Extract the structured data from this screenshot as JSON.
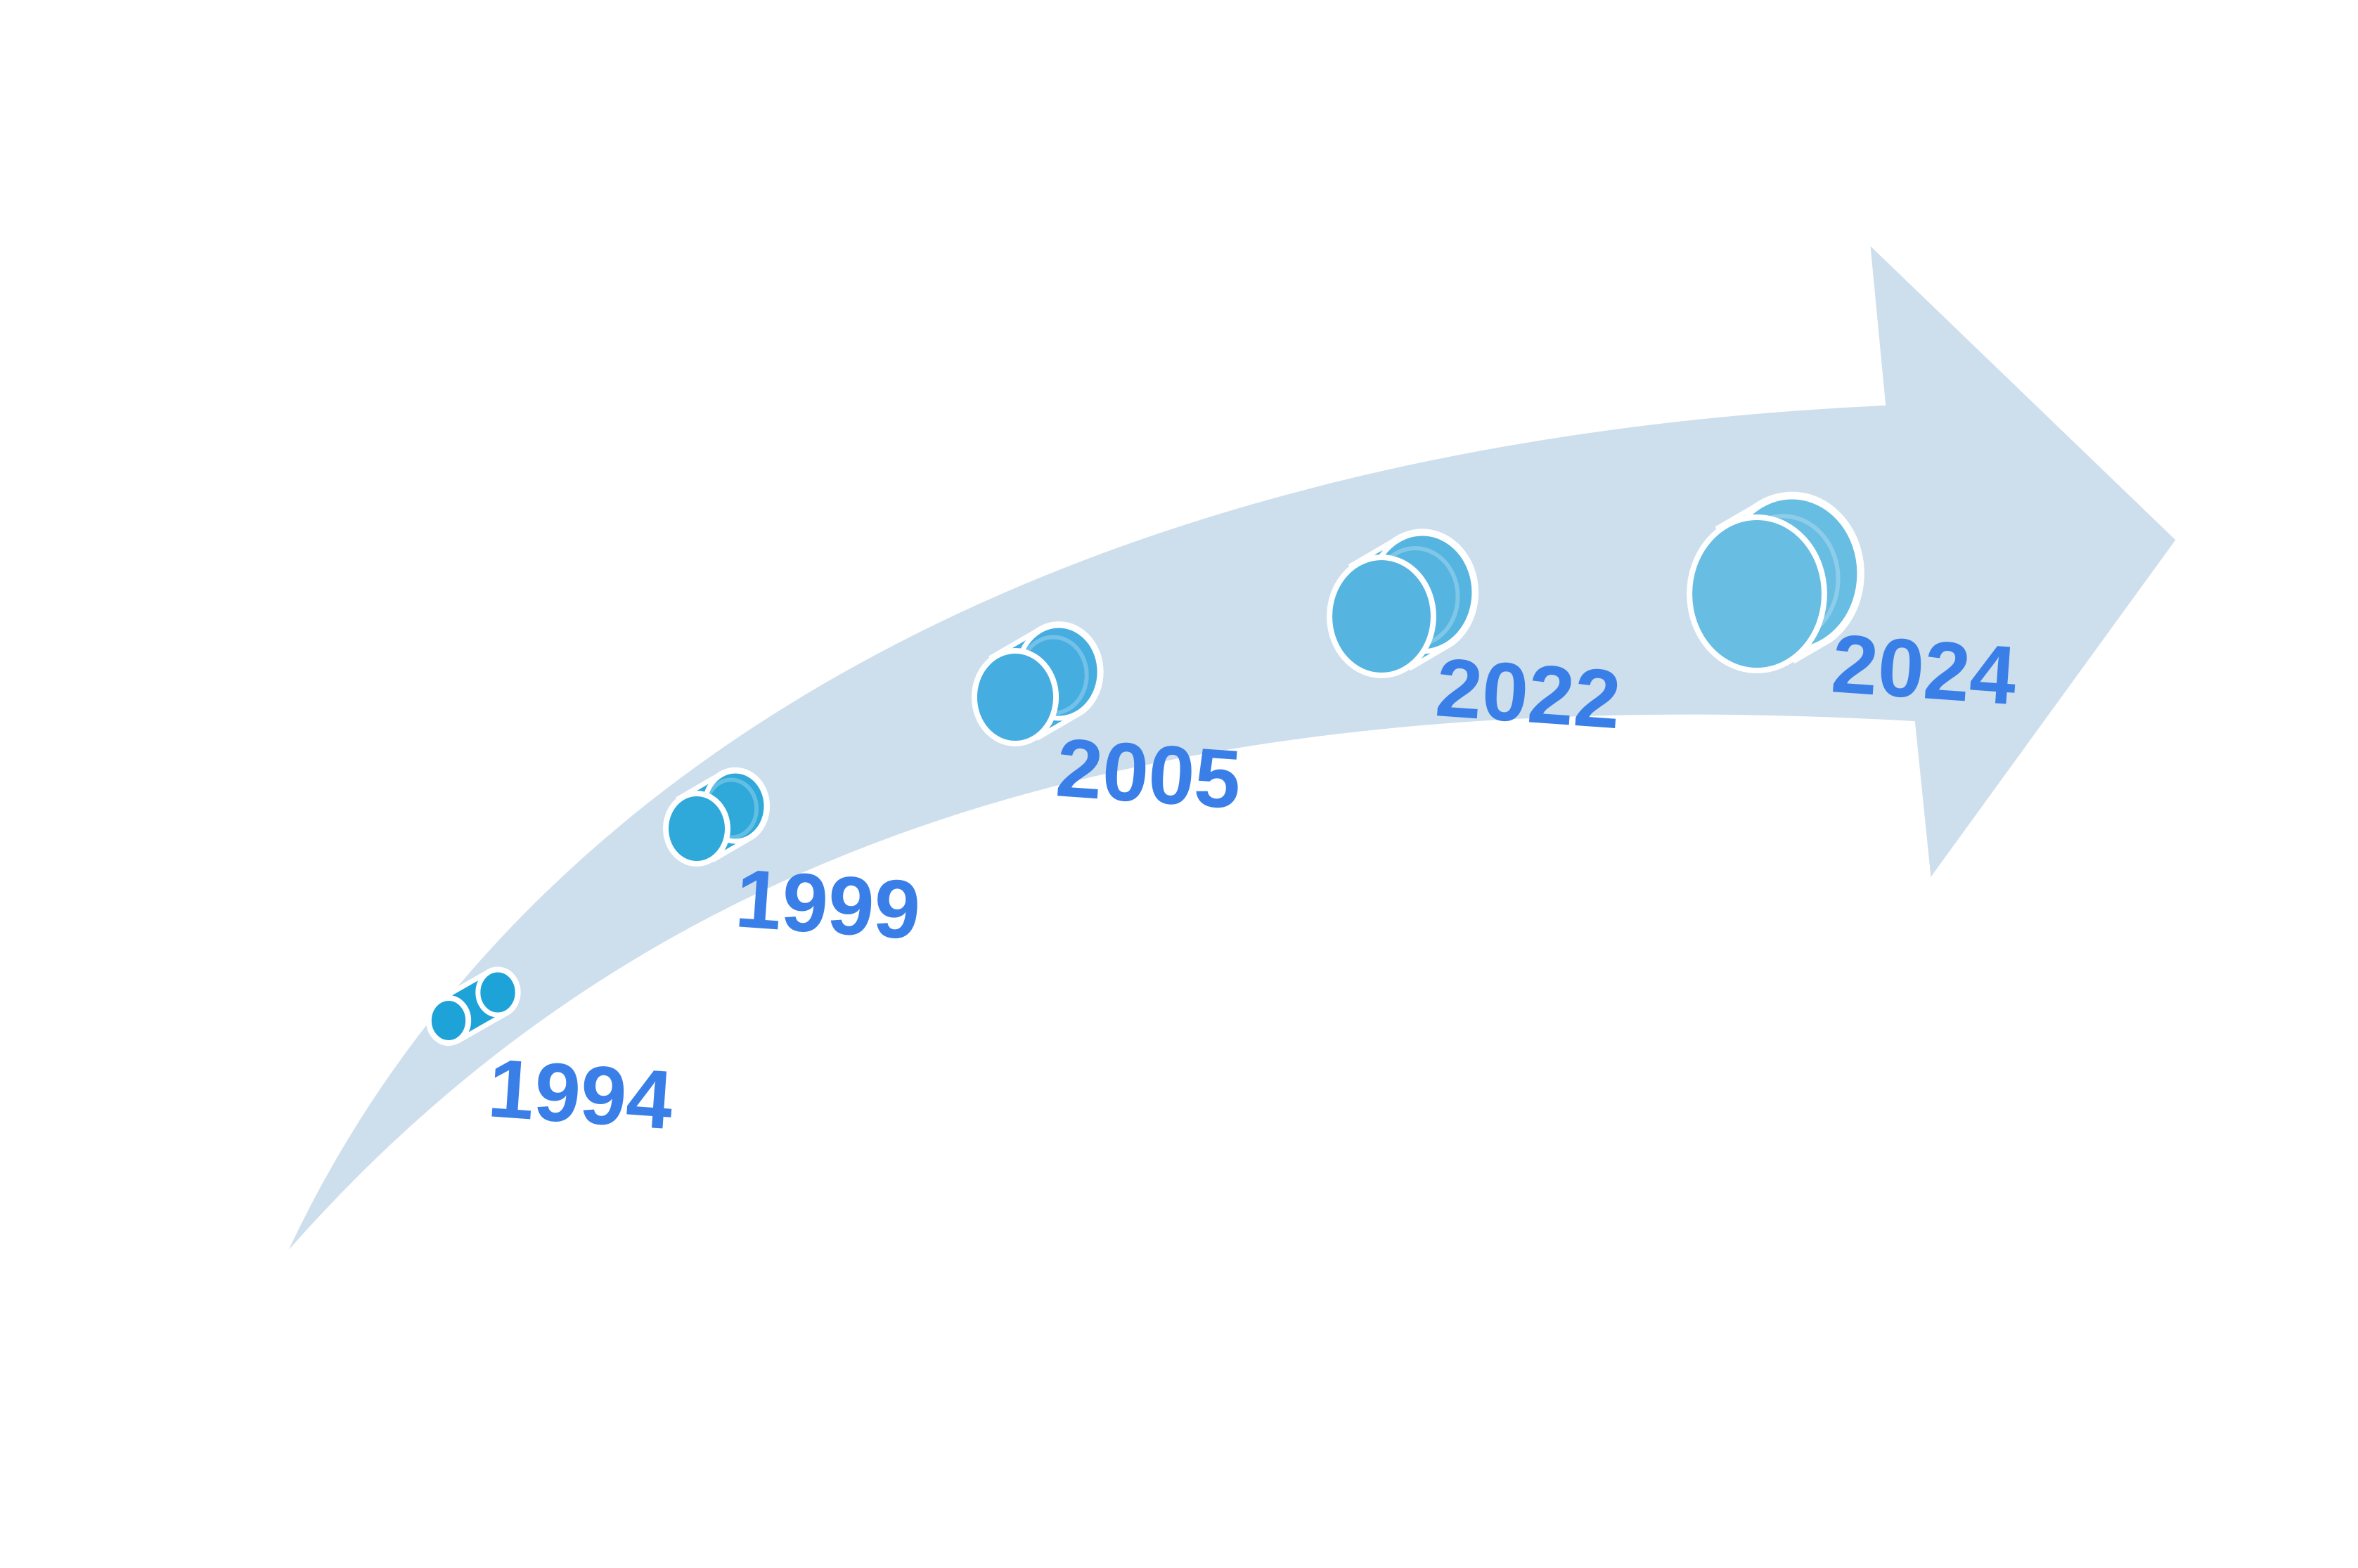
{
  "colors": {
    "background": "#ffffff",
    "arrow_fill": "#cddeed",
    "arrow_edge": "#ffffff",
    "label": "#3a7fe8",
    "milestone_outline": "#ffffff",
    "milestone_fills": [
      "#1ea3d8",
      "#2fa8da",
      "#45ade0",
      "#55b4e0",
      "#68bde3"
    ]
  },
  "milestones": [
    {
      "year": "1994",
      "icon": "cylinder-icon"
    },
    {
      "year": "1999",
      "icon": "cylinder-icon"
    },
    {
      "year": "2005",
      "icon": "cylinder-icon"
    },
    {
      "year": "2022",
      "icon": "cylinder-icon"
    },
    {
      "year": "2024",
      "icon": "cylinder-icon"
    }
  ]
}
